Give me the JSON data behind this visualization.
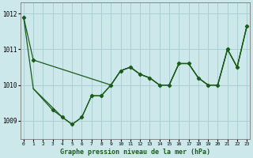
{
  "background_color": "#cce8ea",
  "grid_color": "#aacfd2",
  "line_color": "#1a5c1a",
  "xlabel": "Graphe pression niveau de la mer (hPa)",
  "ylim": [
    1008.5,
    1012.3
  ],
  "xlim": [
    -0.3,
    23.3
  ],
  "yticks": [
    1009,
    1010,
    1011,
    1012
  ],
  "xticks": [
    0,
    1,
    2,
    3,
    4,
    5,
    6,
    7,
    8,
    9,
    10,
    11,
    12,
    13,
    14,
    15,
    16,
    17,
    18,
    19,
    20,
    21,
    22,
    23
  ],
  "line1_x": [
    0,
    1,
    9,
    10,
    11,
    12,
    13,
    14,
    15,
    16,
    17,
    18,
    19,
    20,
    21,
    22,
    23
  ],
  "line1_y": [
    1011.9,
    1010.7,
    1010.0,
    1010.4,
    1010.5,
    1010.3,
    1010.2,
    1010.0,
    1010.0,
    1010.6,
    1010.6,
    1010.2,
    1010.0,
    1010.0,
    1011.0,
    1010.5,
    1011.65
  ],
  "line2_x": [
    1,
    3,
    4,
    5,
    6,
    7,
    8,
    9,
    10,
    11,
    12,
    13,
    14,
    15,
    16,
    17,
    18,
    19,
    20,
    21,
    22,
    23
  ],
  "line2_y": [
    1009.9,
    1009.3,
    1009.1,
    1008.9,
    1009.1,
    1009.7,
    1009.7,
    1010.0,
    1010.4,
    1010.5,
    1010.3,
    1010.2,
    1010.0,
    1010.0,
    1010.6,
    1010.6,
    1010.2,
    1010.0,
    1010.0,
    1011.0,
    1010.5,
    1011.65
  ],
  "line3_x": [
    0,
    1,
    4,
    5,
    6,
    7,
    8,
    9,
    10,
    11,
    12,
    13,
    14,
    15,
    16,
    17,
    18,
    19,
    20,
    21,
    22,
    23
  ],
  "line3_y": [
    1011.9,
    1009.9,
    1009.1,
    1008.9,
    1009.1,
    1009.7,
    1009.7,
    1010.0,
    1010.4,
    1010.5,
    1010.3,
    1010.2,
    1010.0,
    1010.0,
    1010.6,
    1010.6,
    1010.2,
    1010.0,
    1010.0,
    1011.0,
    1010.5,
    1011.65
  ],
  "markers_x": [
    0,
    1,
    3,
    4,
    5,
    6,
    7,
    8,
    9,
    10,
    11,
    12,
    13,
    14,
    15,
    16,
    17,
    18,
    19,
    20,
    21,
    22,
    23
  ],
  "markers_y": [
    1011.9,
    1010.7,
    1009.3,
    1009.1,
    1008.9,
    1009.1,
    1009.7,
    1009.7,
    1010.0,
    1010.4,
    1010.5,
    1010.3,
    1010.2,
    1010.0,
    1010.0,
    1010.6,
    1010.6,
    1010.2,
    1010.0,
    1010.0,
    1011.0,
    1010.5,
    1011.65
  ]
}
